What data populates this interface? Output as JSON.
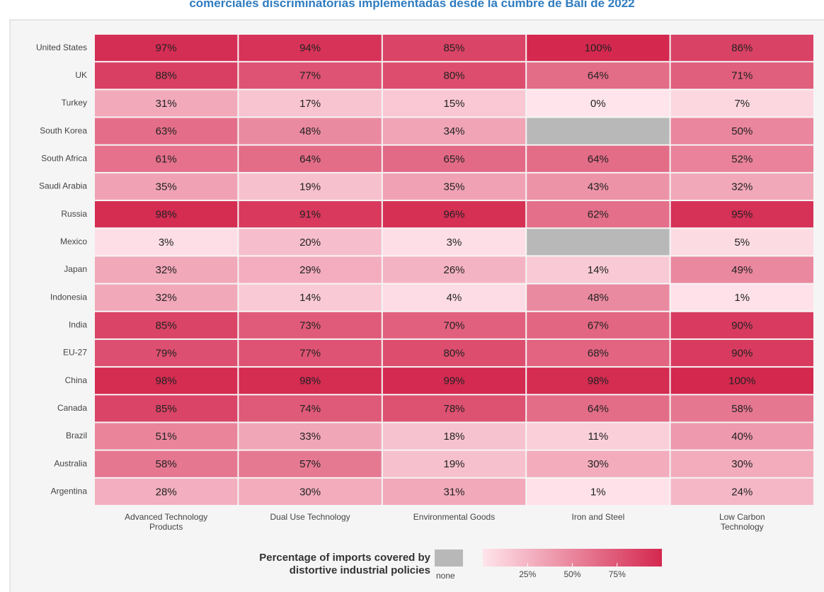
{
  "chart_data": {
    "type": "heatmap",
    "title": "comerciales discriminatorias implementadas desde la cumbre de Bali de 2022",
    "x_categories": [
      "Advanced Technology Products",
      "Dual Use Technology",
      "Environmental Goods",
      "Iron and Steel",
      "Low Carbon Technology"
    ],
    "y_categories": [
      "United States",
      "UK",
      "Turkey",
      "South Korea",
      "South Africa",
      "Saudi Arabia",
      "Russia",
      "Mexico",
      "Japan",
      "Indonesia",
      "India",
      "EU-27",
      "China",
      "Canada",
      "Brazil",
      "Australia",
      "Argentina"
    ],
    "values": [
      [
        97,
        94,
        85,
        100,
        86
      ],
      [
        88,
        77,
        80,
        64,
        71
      ],
      [
        31,
        17,
        15,
        0,
        7
      ],
      [
        63,
        48,
        34,
        null,
        50
      ],
      [
        61,
        64,
        65,
        64,
        52
      ],
      [
        35,
        19,
        35,
        43,
        32
      ],
      [
        98,
        91,
        96,
        62,
        95
      ],
      [
        3,
        20,
        3,
        null,
        5
      ],
      [
        32,
        29,
        26,
        14,
        49
      ],
      [
        32,
        14,
        4,
        48,
        1
      ],
      [
        85,
        73,
        70,
        67,
        90
      ],
      [
        79,
        77,
        80,
        68,
        90
      ],
      [
        98,
        98,
        99,
        98,
        100
      ],
      [
        85,
        74,
        78,
        64,
        58
      ],
      [
        51,
        33,
        18,
        11,
        40
      ],
      [
        58,
        57,
        19,
        30,
        30
      ],
      [
        28,
        30,
        31,
        1,
        24
      ]
    ],
    "value_labels": [
      [
        "97%",
        "94%",
        "85%",
        "100%",
        "86%"
      ],
      [
        "88%",
        "77%",
        "80%",
        "64%",
        "71%"
      ],
      [
        "31%",
        "17%",
        "15%",
        "0%",
        "7%"
      ],
      [
        "63%",
        "48%",
        "34%",
        null,
        "50%"
      ],
      [
        "61%",
        "64%",
        "65%",
        "64%",
        "52%"
      ],
      [
        "35%",
        "19%",
        "35%",
        "43%",
        "32%"
      ],
      [
        "98%",
        "91%",
        "96%",
        "62%",
        "95%"
      ],
      [
        "3%",
        "20%",
        "3%",
        null,
        "5%"
      ],
      [
        "32%",
        "29%",
        "26%",
        "14%",
        "49%"
      ],
      [
        "32%",
        "14%",
        "4%",
        "48%",
        "1%"
      ],
      [
        "85%",
        "73%",
        "70%",
        "67%",
        "90%"
      ],
      [
        "79%",
        "77%",
        "80%",
        "68%",
        "90%"
      ],
      [
        "98%",
        "98%",
        "99%",
        "98%",
        "100%"
      ],
      [
        "85%",
        "74%",
        "78%",
        "64%",
        "58%"
      ],
      [
        "51%",
        "33%",
        "18%",
        "11%",
        "40%"
      ],
      [
        "58%",
        "57%",
        "19%",
        "30%",
        "30%"
      ],
      [
        "28%",
        "30%",
        "31%",
        "1%",
        "24%"
      ]
    ],
    "colormap": [
      "#ffe4eb",
      "#d4284f"
    ],
    "null_color": "#b8b8b8",
    "colorbar": {
      "title": "Percentage of imports covered by distortive industrial policies",
      "none_label": "none",
      "range": [
        0,
        100
      ],
      "ticks": [
        {
          "value": 25,
          "label": "25%"
        },
        {
          "value": 50,
          "label": "50%"
        },
        {
          "value": 75,
          "label": "75%"
        }
      ]
    }
  }
}
